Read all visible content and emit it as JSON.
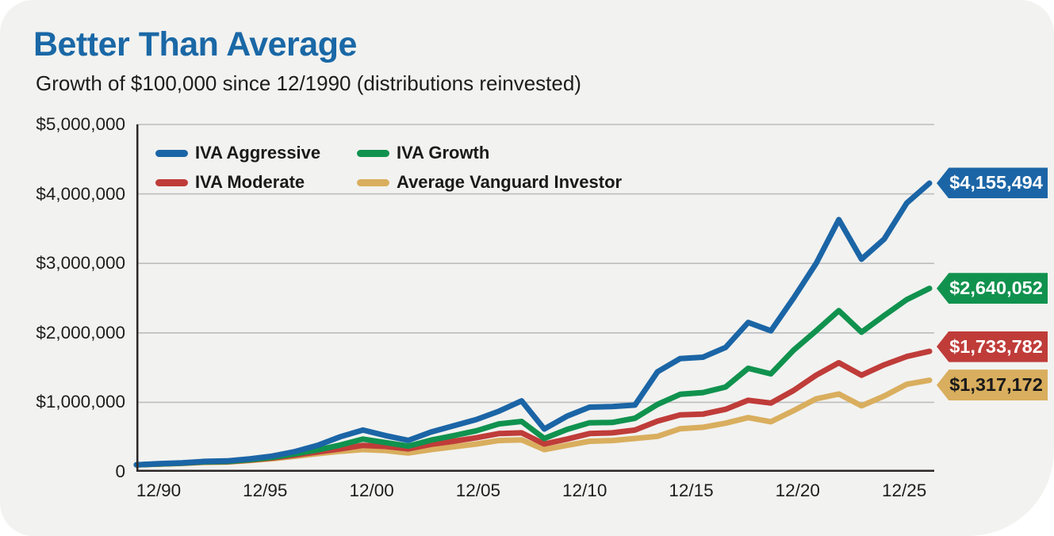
{
  "header": {
    "title": "Better Than Average",
    "subtitle": "Growth of $100,000 since 12/1990 (distributions reinvested)"
  },
  "chart_data": {
    "type": "line",
    "title": "Better Than Average",
    "subtitle": "Growth of $100,000 since 12/1990 (distributions reinvested)",
    "xlabel": "",
    "ylabel": "",
    "ylim": [
      0,
      5000000
    ],
    "grid": true,
    "legend_position": "top-left",
    "x_years": [
      1990,
      1991,
      1992,
      1993,
      1994,
      1995,
      1996,
      1997,
      1998,
      1999,
      2000,
      2001,
      2002,
      2003,
      2004,
      2005,
      2006,
      2007,
      2008,
      2009,
      2010,
      2011,
      2012,
      2013,
      2014,
      2015,
      2016,
      2017,
      2018,
      2019,
      2020,
      2021,
      2022,
      2023,
      2024,
      2025
    ],
    "x_tick_labels": [
      "12/90",
      "12/95",
      "12/00",
      "12/05",
      "12/10",
      "12/15",
      "12/20",
      "12/25"
    ],
    "y_tick_labels": [
      "0",
      "$1,000,000",
      "$2,000,000",
      "$3,000,000",
      "$4,000,000",
      "$5,000,000"
    ],
    "series": [
      {
        "name": "IVA Aggressive",
        "color": "#1b65a6",
        "final_label": "$4,155,494",
        "final_value": 4155494,
        "label_text_color": "#ffffff",
        "values": [
          100000,
          116000,
          128000,
          150000,
          156000,
          186000,
          226000,
          291000,
          381000,
          505000,
          601000,
          521000,
          452000,
          572000,
          662000,
          752000,
          872000,
          1020000,
          615000,
          800000,
          930000,
          940000,
          960000,
          1440000,
          1630000,
          1650000,
          1790000,
          2150000,
          2030000,
          2500000,
          3000000,
          3630000,
          3060000,
          3350000,
          3870000,
          4155494
        ]
      },
      {
        "name": "IVA Growth",
        "color": "#10924e",
        "final_label": "$2,640,052",
        "final_value": 2640052,
        "label_text_color": "#ffffff",
        "values": [
          100000,
          113000,
          124000,
          143000,
          148000,
          175000,
          208000,
          258000,
          315000,
          385000,
          470000,
          420000,
          370000,
          455000,
          520000,
          590000,
          690000,
          725000,
          480000,
          610000,
          705000,
          710000,
          770000,
          970000,
          1115000,
          1140000,
          1220000,
          1490000,
          1410000,
          1750000,
          2030000,
          2320000,
          2010000,
          2250000,
          2480000,
          2640052
        ]
      },
      {
        "name": "IVA Moderate",
        "color": "#bf3c39",
        "final_label": "$1,733,782",
        "final_value": 1733782,
        "label_text_color": "#ffffff",
        "values": [
          100000,
          112000,
          122000,
          140000,
          144000,
          169000,
          198000,
          240000,
          285000,
          330000,
          380000,
          365000,
          330000,
          395000,
          440000,
          490000,
          550000,
          560000,
          400000,
          470000,
          550000,
          560000,
          600000,
          730000,
          820000,
          830000,
          900000,
          1030000,
          990000,
          1170000,
          1390000,
          1570000,
          1390000,
          1540000,
          1660000,
          1733782
        ]
      },
      {
        "name": "Average Vanguard Investor",
        "color": "#d9ae5e",
        "final_label": "$1,317,172",
        "final_value": 1317172,
        "label_text_color": "#1a1a1a",
        "values": [
          100000,
          111000,
          120000,
          136000,
          139000,
          162000,
          188000,
          223000,
          260000,
          295000,
          320000,
          305000,
          270000,
          320000,
          360000,
          400000,
          450000,
          460000,
          320000,
          380000,
          440000,
          450000,
          480000,
          510000,
          620000,
          640000,
          700000,
          780000,
          720000,
          880000,
          1050000,
          1120000,
          950000,
          1090000,
          1260000,
          1317172
        ]
      }
    ]
  },
  "style": {
    "grid_color": "#bdbdbd",
    "axis_color": "#2b2727",
    "card_bg": "#f2f2f0"
  }
}
